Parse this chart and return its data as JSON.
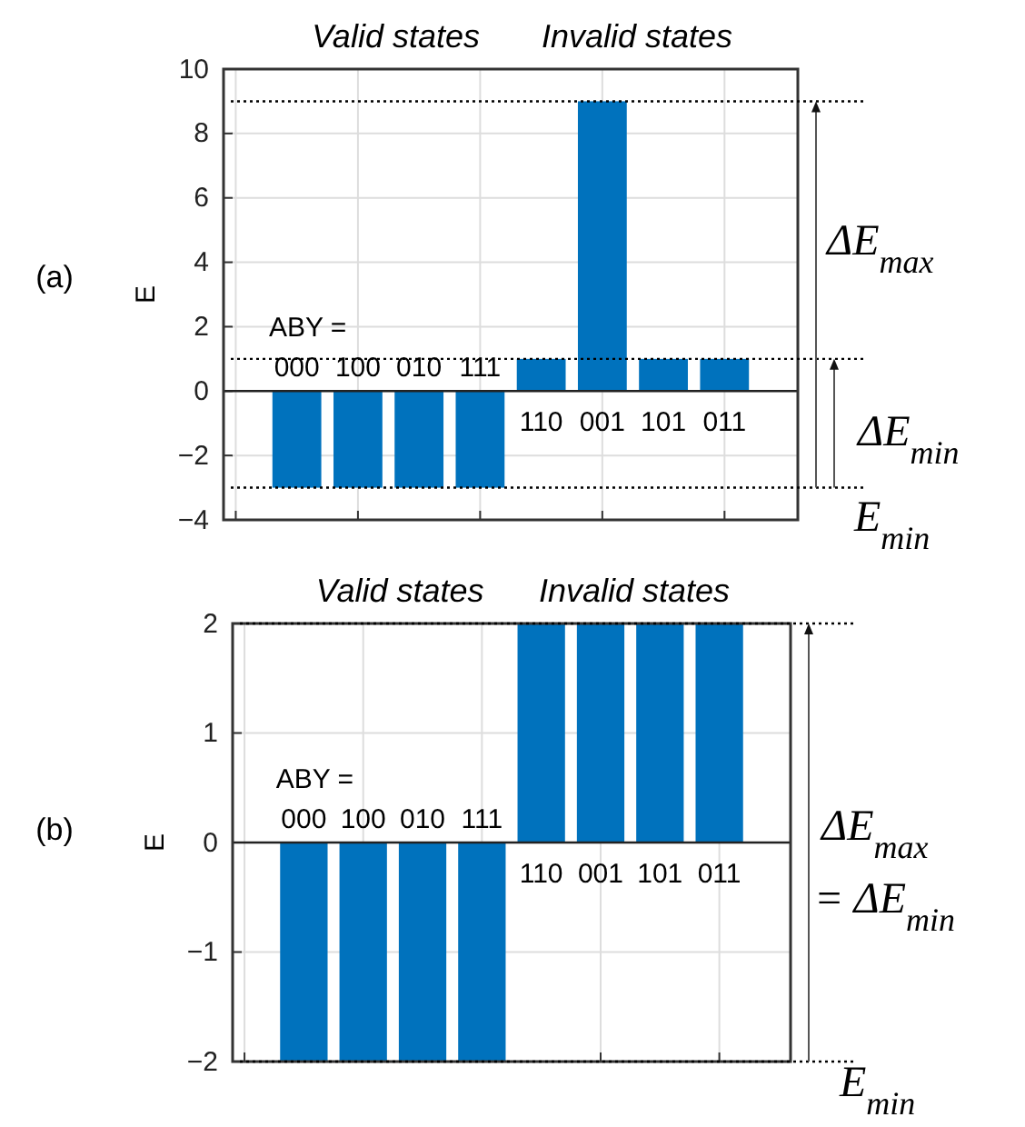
{
  "chart_data": [
    {
      "type": "bar",
      "title": "(a)",
      "ylabel": "E",
      "categories": [
        null,
        null,
        null,
        null,
        null,
        null,
        null,
        null
      ],
      "values": [
        -3,
        -3,
        -3,
        -3,
        1,
        9,
        1,
        1
      ],
      "color": "#0072bd",
      "ylim": [
        -4,
        10
      ],
      "yticks": [
        -4,
        -2,
        0,
        2,
        4,
        6,
        8,
        10
      ],
      "grid": true,
      "ref_lines": [
        {
          "axis": "y",
          "value": 9,
          "line_style": "dotted"
        },
        {
          "axis": "y",
          "value": 1,
          "line_style": "dotted"
        },
        {
          "axis": "y",
          "value": -3,
          "line_style": "dotted"
        }
      ],
      "annotations": [
        "Valid states",
        "Invalid states",
        "ΔE$_{max}$",
        "ΔE$_{min}$",
        "E$_{min}$",
        "ABY =",
        "000",
        "100",
        "010",
        "111",
        "110",
        "001",
        "101",
        "011"
      ]
    },
    {
      "type": "bar",
      "title": "(b)",
      "ylabel": "E",
      "categories": [
        null,
        null,
        null,
        null,
        null,
        null,
        null,
        null
      ],
      "values": [
        -2,
        -2,
        -2,
        -2,
        2,
        2,
        2,
        2
      ],
      "color": "#0072bd",
      "ylim": [
        -2,
        2
      ],
      "yticks": [
        -2,
        -1,
        0,
        1,
        2
      ],
      "grid": true,
      "ref_lines": [
        {
          "axis": "y",
          "value": 2,
          "line_style": "dotted"
        },
        {
          "axis": "y",
          "value": -2,
          "line_style": "dotted"
        }
      ],
      "annotations": [
        "Valid states",
        "Invalid states",
        "ΔE$_{max}$",
        "= ΔE$_{min}$",
        "E$_{min}$",
        "ABY =",
        "000",
        "100",
        "010",
        "111",
        "110",
        "001",
        "101",
        "011"
      ]
    }
  ]
}
